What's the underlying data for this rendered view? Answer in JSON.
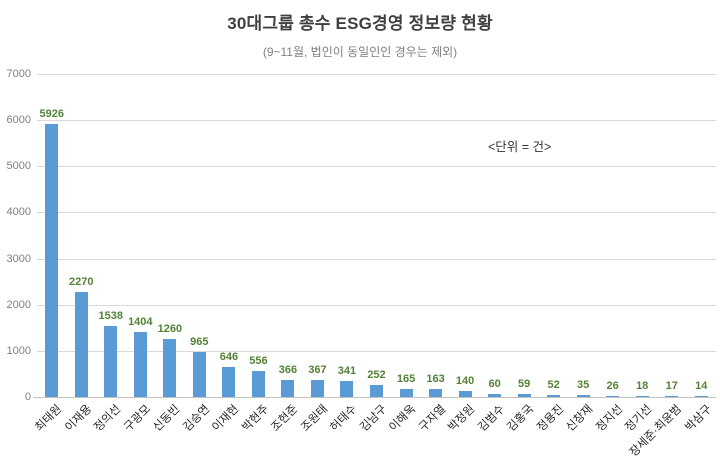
{
  "header": {
    "title": "30대그룹 총수 ESG경영 정보량 현황",
    "subtitle": "(9~11월, 법인이 동일인인 경우는 제외)"
  },
  "annotation": "<단위 = 건>",
  "chart_data": {
    "type": "bar",
    "title": "30대그룹 총수 ESG경영 정보량 현황",
    "subtitle": "(9~11월, 법인이 동일인인 경우는 제외)",
    "unit_note": "<단위 = 건>",
    "categories": [
      "최태원",
      "이재용",
      "정의선",
      "구광모",
      "신동빈",
      "김승연",
      "이재현",
      "박현주",
      "조현준",
      "조원태",
      "허태수",
      "김남구",
      "이해욱",
      "구자열",
      "박정원",
      "김범수",
      "김홍국",
      "정용진",
      "신창재",
      "정지선",
      "정기선",
      "장세준·최윤범",
      "박삼구"
    ],
    "values": [
      5926,
      2270,
      1538,
      1404,
      1260,
      965,
      646,
      556,
      366,
      367,
      341,
      252,
      165,
      163,
      140,
      60,
      59,
      52,
      35,
      26,
      18,
      17,
      14
    ],
    "xlabel": "",
    "ylabel": "",
    "ylim": [
      0,
      7000
    ],
    "ytick_interval": 1000,
    "grid": true,
    "legend": false,
    "data_labels": true
  },
  "colors": {
    "bar": "#5B9BD5",
    "value_label": "#538135",
    "title": "#404040",
    "subtitle": "#7F7F7F",
    "axis_label": "#808080",
    "category_label": "#262626",
    "gridline": "#D9D9D9",
    "background": "#FFFFFF"
  }
}
